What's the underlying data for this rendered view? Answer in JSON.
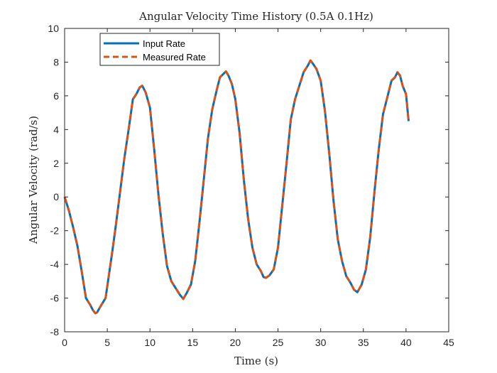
{
  "chart_data": {
    "type": "line",
    "title": "Angular Velocity Time History (0.5A 0.1Hz)",
    "xlabel": "Time (s)",
    "ylabel": "Angular Velocity (rad/s)",
    "xlim": [
      0,
      45
    ],
    "ylim": [
      -8,
      10
    ],
    "xticks": [
      "0",
      "5",
      "10",
      "15",
      "20",
      "25",
      "30",
      "35",
      "40",
      "45"
    ],
    "yticks": [
      "-8",
      "-6",
      "-4",
      "-2",
      "0",
      "2",
      "4",
      "6",
      "8",
      "10"
    ],
    "grid": false,
    "legend_position": "top-left",
    "x": [
      0,
      0.5,
      1,
      1.5,
      2,
      2.5,
      3,
      3.3,
      3.6,
      3.8,
      4.2,
      4.8,
      5.2,
      5.6,
      6,
      6.5,
      7,
      7.5,
      8,
      8.4,
      8.8,
      9.1,
      9.5,
      10,
      10.5,
      11,
      11.5,
      12,
      12.5,
      13,
      13.5,
      13.9,
      14.3,
      14.8,
      15.3,
      15.8,
      16.3,
      16.8,
      17.3,
      17.8,
      18.2,
      18.6,
      18.9,
      19.2,
      19.6,
      20,
      20.5,
      21,
      21.5,
      22,
      22.5,
      23,
      23.3,
      23.6,
      24,
      24.5,
      25,
      25.5,
      26,
      26.5,
      27,
      27.5,
      28,
      28.5,
      28.8,
      29.1,
      29.5,
      30,
      30.5,
      31,
      31.5,
      32,
      32.5,
      33,
      33.5,
      33.9,
      34.3,
      34.8,
      35.3,
      35.8,
      36.3,
      36.8,
      37.3,
      37.8,
      38.3,
      38.7,
      39,
      39.3,
      39.6,
      40,
      40.3
    ],
    "series": [
      {
        "name": "Input Rate",
        "color": "#0072BD",
        "style": "solid",
        "values": [
          0,
          -0.8,
          -1.8,
          -2.9,
          -4.4,
          -6.0,
          -6.4,
          -6.7,
          -6.9,
          -6.85,
          -6.5,
          -6.0,
          -4.6,
          -3.2,
          -1.7,
          0.3,
          2.3,
          4.0,
          5.8,
          6.1,
          6.5,
          6.6,
          6.2,
          5.3,
          2.8,
          0.1,
          -2.2,
          -4.1,
          -5.0,
          -5.4,
          -5.8,
          -6.05,
          -5.7,
          -5.2,
          -3.8,
          -1.5,
          1.0,
          3.5,
          5.2,
          6.3,
          7.1,
          7.3,
          7.45,
          7.2,
          6.7,
          5.8,
          3.8,
          1.0,
          -1.3,
          -3.0,
          -4.0,
          -4.4,
          -4.75,
          -4.8,
          -4.65,
          -4.3,
          -3.0,
          -0.5,
          2.0,
          4.6,
          5.8,
          6.6,
          7.4,
          7.8,
          8.1,
          7.9,
          7.6,
          6.9,
          5.1,
          2.6,
          -0.2,
          -2.5,
          -3.8,
          -4.7,
          -5.1,
          -5.5,
          -5.65,
          -5.2,
          -4.3,
          -2.4,
          0.3,
          2.8,
          4.9,
          5.9,
          6.9,
          7.1,
          7.4,
          7.2,
          6.6,
          6.1,
          4.5
        ]
      },
      {
        "name": "Measured Rate",
        "color": "#D95319",
        "style": "dashed",
        "values": [
          0,
          -0.8,
          -1.8,
          -2.9,
          -4.4,
          -6.0,
          -6.4,
          -6.7,
          -6.9,
          -6.85,
          -6.5,
          -6.0,
          -4.6,
          -3.2,
          -1.7,
          0.3,
          2.3,
          4.0,
          5.8,
          6.1,
          6.5,
          6.6,
          6.2,
          5.3,
          2.8,
          0.1,
          -2.2,
          -4.1,
          -5.0,
          -5.4,
          -5.8,
          -6.05,
          -5.7,
          -5.2,
          -3.8,
          -1.5,
          1.0,
          3.5,
          5.2,
          6.3,
          7.1,
          7.3,
          7.45,
          7.2,
          6.7,
          5.8,
          3.8,
          1.0,
          -1.3,
          -3.0,
          -4.0,
          -4.4,
          -4.75,
          -4.8,
          -4.65,
          -4.3,
          -3.0,
          -0.5,
          2.0,
          4.6,
          5.8,
          6.6,
          7.4,
          7.8,
          8.1,
          7.9,
          7.6,
          6.9,
          5.1,
          2.6,
          -0.2,
          -2.5,
          -3.8,
          -4.7,
          -5.1,
          -5.5,
          -5.65,
          -5.2,
          -4.3,
          -2.4,
          0.3,
          2.8,
          4.9,
          5.9,
          6.9,
          7.1,
          7.4,
          7.2,
          6.6,
          6.1,
          4.5
        ]
      }
    ]
  }
}
